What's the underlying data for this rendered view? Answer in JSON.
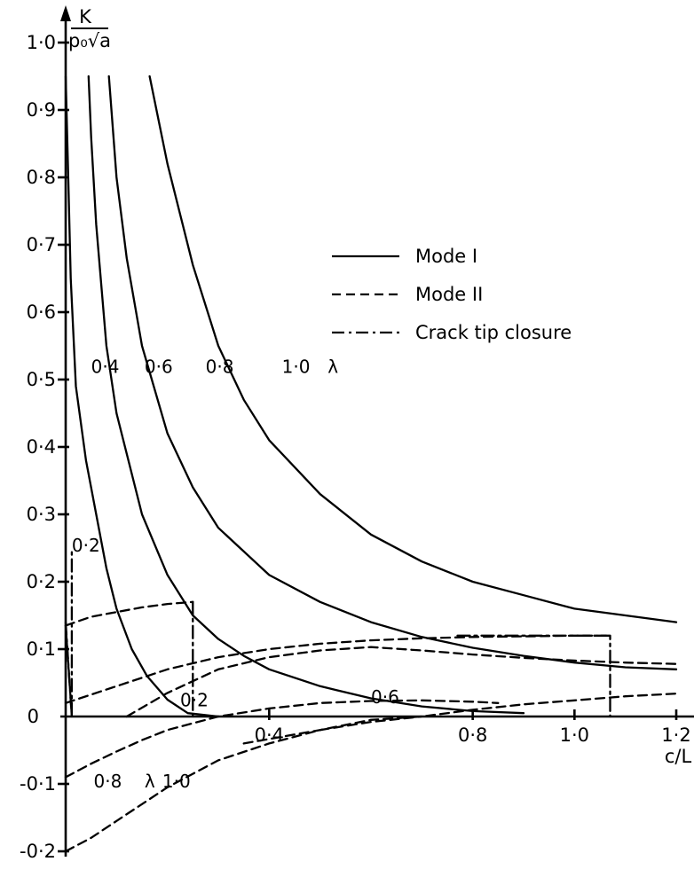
{
  "chart_data": {
    "type": "line",
    "title": "",
    "xlabel": "c/L",
    "ylabel": "K/(p₀√a)",
    "ylabel_num": "K",
    "ylabel_den": "p₀√a",
    "xlim": [
      0,
      1.2
    ],
    "ylim": [
      -0.2,
      1.0
    ],
    "grid": false,
    "legend_position": "right",
    "x_ticks": [
      {
        "value": 0,
        "label": "0"
      },
      {
        "value": 0.4,
        "label": "0·4"
      },
      {
        "value": 0.8,
        "label": "0·8"
      },
      {
        "value": 1.0,
        "label": "1·0"
      },
      {
        "value": 1.2,
        "label": "1·2"
      }
    ],
    "y_ticks": [
      {
        "value": 1.0,
        "label": "1·0"
      },
      {
        "value": 0.9,
        "label": "0·9"
      },
      {
        "value": 0.8,
        "label": "0·8"
      },
      {
        "value": 0.7,
        "label": "0·7"
      },
      {
        "value": 0.6,
        "label": "0·6"
      },
      {
        "value": 0.5,
        "label": "0·5"
      },
      {
        "value": 0.4,
        "label": "0·4"
      },
      {
        "value": 0.3,
        "label": "0·3"
      },
      {
        "value": 0.2,
        "label": "0·2"
      },
      {
        "value": 0.1,
        "label": "0·1"
      },
      {
        "value": -0.1,
        "label": "-0·1"
      },
      {
        "value": -0.2,
        "label": "-0·2"
      }
    ],
    "legend": [
      {
        "label": "Mode I",
        "style": "solid"
      },
      {
        "label": "Mode II",
        "style": "dashed"
      },
      {
        "label": "Crack tip closure",
        "style": "dashdot"
      }
    ],
    "curve_labels": [
      {
        "text": "0·4",
        "x": 0.05,
        "y": 0.51
      },
      {
        "text": "0·6",
        "x": 0.155,
        "y": 0.51
      },
      {
        "text": "0·8",
        "x": 0.275,
        "y": 0.51
      },
      {
        "text": "1·0",
        "x": 0.425,
        "y": 0.51
      },
      {
        "text": "λ",
        "x": 0.515,
        "y": 0.51
      },
      {
        "text": "0·2",
        "x": 0.012,
        "y": 0.245
      },
      {
        "text": "0·2",
        "x": 0.225,
        "y": 0.015
      },
      {
        "text": "0·6",
        "x": 0.6,
        "y": 0.02
      },
      {
        "text": "0·8",
        "x": 0.055,
        "y": -0.105
      },
      {
        "text": "λ",
        "x": 0.155,
        "y": -0.105
      },
      {
        "text": "1·0",
        "x": 0.19,
        "y": -0.105
      }
    ],
    "series": [
      {
        "style": "solid",
        "x": [
          0,
          0.005,
          0.01,
          0.02,
          0.04,
          0.06,
          0.08,
          0.1,
          0.13,
          0.16,
          0.2,
          0.24,
          0.3
        ],
        "y": [
          0.95,
          0.8,
          0.65,
          0.49,
          0.38,
          0.3,
          0.22,
          0.16,
          0.1,
          0.06,
          0.025,
          0.005,
          0.0
        ]
      },
      {
        "style": "solid",
        "x": [
          0.045,
          0.05,
          0.06,
          0.08,
          0.1,
          0.15,
          0.2,
          0.25,
          0.3,
          0.35,
          0.4,
          0.5,
          0.6,
          0.7,
          0.8,
          0.9
        ],
        "y": [
          0.95,
          0.86,
          0.73,
          0.55,
          0.45,
          0.3,
          0.21,
          0.15,
          0.115,
          0.09,
          0.07,
          0.045,
          0.027,
          0.015,
          0.008,
          0.005
        ]
      },
      {
        "style": "solid",
        "x": [
          0.085,
          0.1,
          0.12,
          0.15,
          0.2,
          0.25,
          0.3,
          0.4,
          0.5,
          0.6,
          0.7,
          0.8,
          0.9,
          1.0,
          1.1,
          1.2
        ],
        "y": [
          0.95,
          0.8,
          0.68,
          0.55,
          0.42,
          0.34,
          0.28,
          0.21,
          0.17,
          0.14,
          0.118,
          0.102,
          0.09,
          0.08,
          0.073,
          0.07
        ]
      },
      {
        "style": "solid",
        "x": [
          0.165,
          0.2,
          0.25,
          0.3,
          0.35,
          0.4,
          0.5,
          0.6,
          0.7,
          0.8,
          0.9,
          1.0,
          1.1,
          1.2
        ],
        "y": [
          0.95,
          0.82,
          0.67,
          0.55,
          0.47,
          0.41,
          0.33,
          0.27,
          0.23,
          0.2,
          0.18,
          0.16,
          0.15,
          0.14
        ]
      },
      {
        "style": "dashed",
        "x": [
          0,
          0.05,
          0.1,
          0.15,
          0.2,
          0.25
        ],
        "y": [
          0.135,
          0.148,
          0.155,
          0.162,
          0.167,
          0.17
        ]
      },
      {
        "style": "dashed",
        "x": [
          0,
          0.1,
          0.2,
          0.3,
          0.4,
          0.5,
          0.6,
          0.7,
          0.8,
          0.9,
          1.0,
          1.07
        ],
        "y": [
          0.02,
          0.045,
          0.07,
          0.088,
          0.1,
          0.108,
          0.113,
          0.116,
          0.118,
          0.119,
          0.12,
          0.12
        ]
      },
      {
        "style": "dashed",
        "x": [
          0.12,
          0.2,
          0.3,
          0.4,
          0.5,
          0.6,
          0.7,
          0.8,
          0.9,
          1.0,
          1.1,
          1.2
        ],
        "y": [
          0.0,
          0.035,
          0.07,
          0.088,
          0.098,
          0.103,
          0.098,
          0.092,
          0.087,
          0.083,
          0.08,
          0.078
        ]
      },
      {
        "style": "dashed",
        "x": [
          0,
          0.05,
          0.1,
          0.15,
          0.2,
          0.3,
          0.4,
          0.5,
          0.6,
          0.7,
          0.8,
          0.85
        ],
        "y": [
          -0.09,
          -0.07,
          -0.052,
          -0.035,
          -0.02,
          0.0,
          0.012,
          0.02,
          0.023,
          0.024,
          0.022,
          0.02
        ]
      },
      {
        "style": "dashed",
        "x": [
          0.35,
          0.5,
          0.6,
          0.7,
          0.8,
          0.9,
          1.0,
          1.1,
          1.2
        ],
        "y": [
          -0.04,
          -0.02,
          -0.005,
          0.0,
          0.01,
          0.018,
          0.024,
          0.03,
          0.034
        ]
      },
      {
        "style": "dashed",
        "x": [
          0,
          0.05,
          0.1,
          0.15,
          0.2,
          0.25,
          0.3,
          0.4,
          0.5,
          0.6,
          0.7
        ],
        "y": [
          -0.2,
          -0.18,
          -0.155,
          -0.13,
          -0.105,
          -0.085,
          -0.065,
          -0.04,
          -0.02,
          -0.008,
          0.0
        ]
      },
      {
        "style": "dashdot",
        "x": [
          0,
          0.012,
          0.012,
          0.012
        ],
        "y": [
          0.14,
          0.0,
          0.0,
          0.25
        ]
      },
      {
        "style": "dashdot",
        "x": [
          0,
          0.012
        ],
        "y": [
          0.135,
          0.0
        ]
      },
      {
        "style": "dashdot",
        "x": [
          0.25,
          0.25
        ],
        "y": [
          0.17,
          0.0
        ]
      },
      {
        "style": "dashdot",
        "x": [
          0.77,
          1.07,
          1.07
        ],
        "y": [
          0.12,
          0.12,
          0.0
        ]
      }
    ]
  }
}
